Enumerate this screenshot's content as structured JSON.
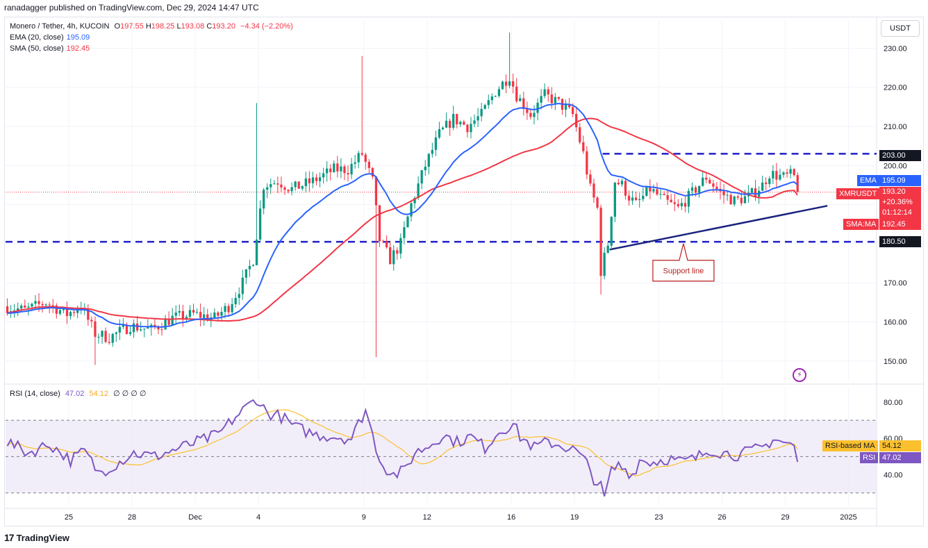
{
  "header": {
    "attribution": "ranadagger published on TradingView.com, Dec 29, 2024 14:47 UTC"
  },
  "legend": {
    "symbol": "Monero / Tether, 4h, KUCOIN",
    "open_label": "O",
    "open": "197.55",
    "high_label": "H",
    "high": "198.25",
    "low_label": "L",
    "low": "193.08",
    "close_label": "C",
    "close": "193.20",
    "change": "−4.34 (−2.20%)",
    "ema_label": "EMA (20, close)",
    "ema_value": "195.09",
    "sma_label": "SMA (50, close)",
    "sma_value": "192.45",
    "rsi_label": "RSI (14, close)",
    "rsi_value": "47.02",
    "rsi_ma_value": "54.12",
    "rsi_extra": "∅ ∅ ∅ ∅"
  },
  "currency_button": "USDT",
  "footer": {
    "brand": "TradingView",
    "logo_glyph": "17"
  },
  "price_tags": {
    "ema_label": "EMA",
    "ema_value": "195.09",
    "symbol_label": "XMRUSDT",
    "price": "193.20",
    "change_pct": "+20.36%",
    "countdown": "01:12:14",
    "sma_label": "SMA:MA",
    "sma_value": "192.45",
    "resistance": "203.00",
    "support": "180.50",
    "rsi_ma_label": "RSI-based MA",
    "rsi_ma_value": "54.12",
    "rsi_label": "RSI",
    "rsi_value": "47.02"
  },
  "annotation": {
    "support_line_label": "Support line"
  },
  "colors": {
    "up": "#089981",
    "down": "#f23645",
    "ema": "#2962ff",
    "sma": "#f23645",
    "level_line": "#1e1ec8",
    "rsi": "#7e57c2",
    "rsi_ma": "#fbc02d",
    "rsi_band": "#ede7f6"
  },
  "chart_data": [
    {
      "type": "candlestick",
      "title": "Monero / Tether, 4h, KUCOIN",
      "y_ticks": [
        150,
        160,
        170,
        180,
        190,
        200,
        210,
        220,
        230
      ],
      "y_tick_labels": [
        "150.00",
        "160.00",
        "170.00",
        "",
        "",
        "200.00",
        "210.00",
        "220.00",
        "230.00"
      ],
      "ylim": [
        145,
        237
      ],
      "x_ticks": [
        {
          "label": "25",
          "i": 18
        },
        {
          "label": "28",
          "i": 36
        },
        {
          "label": "Dec",
          "i": 54
        },
        {
          "label": "4",
          "i": 72
        },
        {
          "label": "9",
          "i": 102
        },
        {
          "label": "12",
          "i": 120
        },
        {
          "label": "16",
          "i": 144
        },
        {
          "label": "19",
          "i": 162
        },
        {
          "label": "23",
          "i": 186
        },
        {
          "label": "26",
          "i": 204
        },
        {
          "label": "29",
          "i": 222
        },
        {
          "label": "2025",
          "i": 240
        }
      ],
      "xlim": [
        0,
        248
      ],
      "waypoints": [
        [
          0,
          164
        ],
        [
          6,
          163
        ],
        [
          12,
          165
        ],
        [
          18,
          162
        ],
        [
          22,
          164
        ],
        [
          26,
          157
        ],
        [
          30,
          156
        ],
        [
          36,
          159
        ],
        [
          42,
          158
        ],
        [
          48,
          161
        ],
        [
          54,
          162
        ],
        [
          60,
          161
        ],
        [
          64,
          164
        ],
        [
          68,
          170
        ],
        [
          71,
          176
        ],
        [
          74,
          195
        ],
        [
          78,
          196
        ],
        [
          82,
          194
        ],
        [
          88,
          196
        ],
        [
          94,
          199
        ],
        [
          98,
          199
        ],
        [
          102,
          203
        ],
        [
          105,
          196
        ],
        [
          107,
          181
        ],
        [
          110,
          176
        ],
        [
          113,
          180
        ],
        [
          116,
          190
        ],
        [
          120,
          200
        ],
        [
          124,
          208
        ],
        [
          128,
          212
        ],
        [
          132,
          210
        ],
        [
          136,
          213
        ],
        [
          140,
          219
        ],
        [
          144,
          223
        ],
        [
          146,
          218
        ],
        [
          150,
          213
        ],
        [
          154,
          218
        ],
        [
          158,
          216
        ],
        [
          162,
          213
        ],
        [
          165,
          203
        ],
        [
          167,
          194
        ],
        [
          169,
          189
        ],
        [
          170,
          173
        ],
        [
          172,
          180
        ],
        [
          174,
          196
        ],
        [
          176,
          195
        ],
        [
          178,
          192
        ],
        [
          180,
          190
        ],
        [
          184,
          194
        ],
        [
          188,
          191
        ],
        [
          192,
          189
        ],
        [
          196,
          193
        ],
        [
          200,
          197
        ],
        [
          204,
          193
        ],
        [
          208,
          191
        ],
        [
          212,
          192
        ],
        [
          216,
          195
        ],
        [
          218,
          198
        ],
        [
          222,
          197
        ],
        [
          224,
          197.55
        ],
        [
          225,
          193.2
        ]
      ],
      "last_candle": {
        "open": 197.55,
        "high": 198.25,
        "low": 193.08,
        "close": 193.2
      },
      "ema": {
        "name": "EMA",
        "period": 20,
        "last": 195.09
      },
      "sma": {
        "name": "SMA",
        "period": 50,
        "last": 192.45
      },
      "horizontal_levels": [
        203,
        180.5
      ],
      "trendline": {
        "from": {
          "i": 172,
          "y": 178.5
        },
        "to": {
          "i": 234,
          "y": 189.7
        }
      },
      "annotations": [
        {
          "text": "Support line",
          "i": 193,
          "y": 174
        }
      ]
    },
    {
      "type": "line",
      "title": "RSI (14, close)",
      "y_ticks": [
        40,
        60,
        80
      ],
      "y_tick_labels": [
        "40.00",
        "60.00",
        "80.00"
      ],
      "ylim": [
        23,
        88
      ],
      "band": [
        30,
        70
      ],
      "midline": 50,
      "waypoints": [
        [
          0,
          58
        ],
        [
          6,
          52
        ],
        [
          12,
          57
        ],
        [
          18,
          48
        ],
        [
          22,
          53
        ],
        [
          26,
          41
        ],
        [
          30,
          45
        ],
        [
          36,
          52
        ],
        [
          42,
          50
        ],
        [
          48,
          54
        ],
        [
          54,
          58
        ],
        [
          60,
          62
        ],
        [
          64,
          70
        ],
        [
          68,
          77
        ],
        [
          71,
          82
        ],
        [
          74,
          74
        ],
        [
          78,
          72
        ],
        [
          82,
          66
        ],
        [
          88,
          62
        ],
        [
          94,
          61
        ],
        [
          98,
          60
        ],
        [
          102,
          76
        ],
        [
          105,
          55
        ],
        [
          107,
          45
        ],
        [
          110,
          40
        ],
        [
          113,
          42
        ],
        [
          116,
          52
        ],
        [
          120,
          56
        ],
        [
          124,
          62
        ],
        [
          128,
          58
        ],
        [
          132,
          61
        ],
        [
          136,
          55
        ],
        [
          140,
          64
        ],
        [
          144,
          68
        ],
        [
          146,
          61
        ],
        [
          150,
          55
        ],
        [
          154,
          58
        ],
        [
          158,
          56
        ],
        [
          162,
          53
        ],
        [
          165,
          46
        ],
        [
          167,
          38
        ],
        [
          169,
          33
        ],
        [
          170,
          27
        ],
        [
          172,
          42
        ],
        [
          174,
          45
        ],
        [
          176,
          43
        ],
        [
          178,
          40
        ],
        [
          180,
          48
        ],
        [
          184,
          47
        ],
        [
          188,
          49
        ],
        [
          192,
          47
        ],
        [
          196,
          49
        ],
        [
          200,
          54
        ],
        [
          204,
          52
        ],
        [
          208,
          51
        ],
        [
          212,
          53
        ],
        [
          216,
          56
        ],
        [
          218,
          60
        ],
        [
          222,
          57
        ],
        [
          224,
          56
        ],
        [
          225,
          47.02
        ]
      ],
      "rsi_ma": {
        "name": "RSI-based MA",
        "last": 54.12
      }
    }
  ]
}
